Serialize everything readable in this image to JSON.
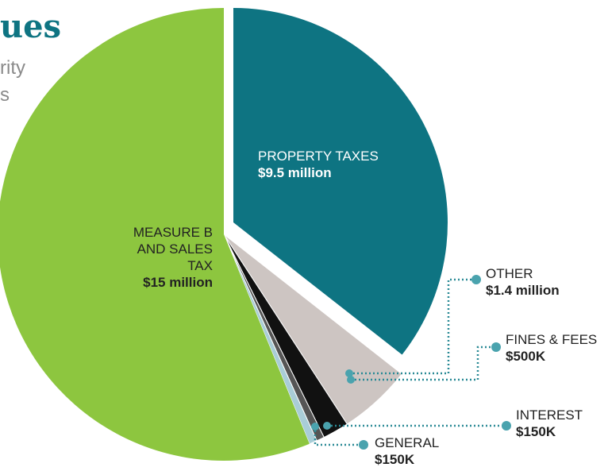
{
  "chart_data": {
    "type": "pie",
    "title": "ues",
    "subtitle": [
      "rity",
      "s"
    ],
    "categories": [
      "PROPERTY TAXES",
      "OTHER",
      "FINES & FEES",
      "INTEREST",
      "GENERAL",
      "MEASURE B AND SALES TAX"
    ],
    "values": [
      9500000,
      1400000,
      500000,
      150000,
      150000,
      15000000
    ],
    "value_labels": [
      "$9.5 million",
      "$1.4 million",
      "$500K",
      "$150K",
      "$150K",
      "$15 million"
    ],
    "colors": [
      "#0e7482",
      "#cdc5c2",
      "#111111",
      "#555555",
      "#a9cdd7",
      "#8dc63f"
    ]
  }
}
